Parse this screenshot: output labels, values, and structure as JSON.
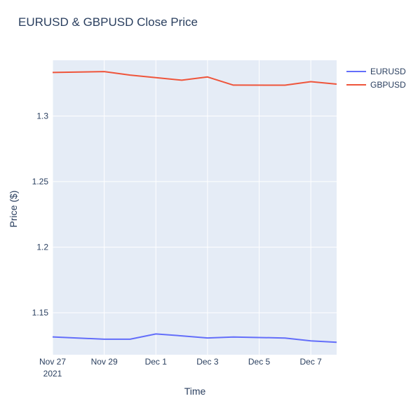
{
  "chart_data": {
    "type": "line",
    "title": "EURUSD & GBPUSD Close Price",
    "xlabel": "Time",
    "ylabel": "Price ($)",
    "x_range": [
      "2021-11-26",
      "2021-12-07"
    ],
    "ylim": [
      1.118,
      1.3425
    ],
    "y_ticks": [
      1.15,
      1.2,
      1.25,
      1.3
    ],
    "y_tick_labels": [
      "1.15",
      "1.2",
      "1.25",
      "1.3"
    ],
    "x_ticks": [
      {
        "date": "2021-11-26",
        "label": "Nov 27",
        "sublabel": "2021"
      },
      {
        "date": "2021-11-28",
        "label": "Nov 29",
        "sublabel": ""
      },
      {
        "date": "2021-11-30",
        "label": "Dec 1",
        "sublabel": ""
      },
      {
        "date": "2021-12-02",
        "label": "Dec 3",
        "sublabel": ""
      },
      {
        "date": "2021-12-04",
        "label": "Dec 5",
        "sublabel": ""
      },
      {
        "date": "2021-12-06",
        "label": "Dec 7",
        "sublabel": ""
      }
    ],
    "grid": true,
    "legend_position": "top-right",
    "series": [
      {
        "name": "EURUSD",
        "color": "#636efa",
        "points": [
          {
            "x": "2021-11-26",
            "y": 1.1316
          },
          {
            "x": "2021-11-28",
            "y": 1.1298
          },
          {
            "x": "2021-11-29",
            "y": 1.1298
          },
          {
            "x": "2021-11-30",
            "y": 1.1338
          },
          {
            "x": "2021-12-01",
            "y": 1.1324
          },
          {
            "x": "2021-12-02",
            "y": 1.1308
          },
          {
            "x": "2021-12-03",
            "y": 1.1315
          },
          {
            "x": "2021-12-05",
            "y": 1.1307
          },
          {
            "x": "2021-12-06",
            "y": 1.1286
          },
          {
            "x": "2021-12-07",
            "y": 1.1275
          }
        ]
      },
      {
        "name": "GBPUSD",
        "color": "#ef553b",
        "points": [
          {
            "x": "2021-11-26",
            "y": 1.3332
          },
          {
            "x": "2021-11-28",
            "y": 1.3339
          },
          {
            "x": "2021-11-29",
            "y": 1.3312
          },
          {
            "x": "2021-11-30",
            "y": 1.3293
          },
          {
            "x": "2021-12-01",
            "y": 1.3273
          },
          {
            "x": "2021-12-02",
            "y": 1.3298
          },
          {
            "x": "2021-12-03",
            "y": 1.3236
          },
          {
            "x": "2021-12-05",
            "y": 1.3235
          },
          {
            "x": "2021-12-06",
            "y": 1.3262
          },
          {
            "x": "2021-12-07",
            "y": 1.3243
          }
        ]
      }
    ]
  }
}
